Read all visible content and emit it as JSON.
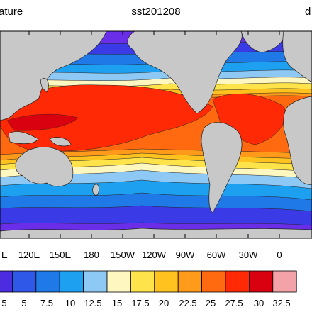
{
  "title": {
    "left": "ature",
    "center": "sst201208",
    "right": "d"
  },
  "map": {
    "lon_labels": [
      "E",
      "120E",
      "150E",
      "180",
      "150W",
      "120W",
      "90W",
      "60W",
      "30W",
      "0"
    ],
    "land_color": "#c8c8c8",
    "ocean_base_color": "#6a2ee8"
  },
  "colorbar": {
    "labels": [
      "5",
      "5",
      "7.5",
      "10",
      "12.5",
      "15",
      "17.5",
      "20",
      "22.5",
      "25",
      "27.5",
      "30",
      "32.5"
    ],
    "colors": [
      "#4b2ce0",
      "#2f58e8",
      "#1f7ae8",
      "#1ea0f0",
      "#8ec9f5",
      "#fff7c0",
      "#ffe34a",
      "#ffc21e",
      "#ff9a1a",
      "#ff6a10",
      "#ff2a05",
      "#d9000f",
      "#f3a3a8"
    ]
  }
}
